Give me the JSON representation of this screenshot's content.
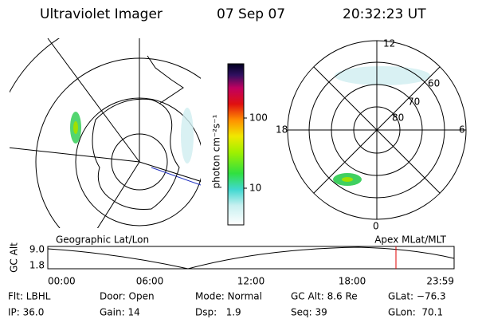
{
  "header": {
    "instrument": "Ultraviolet Imager",
    "date": "07 Sep 07",
    "time": "20:32:23 UT"
  },
  "colorbar": {
    "label": "photon cm⁻²s⁻¹",
    "ticks": [
      "100",
      "10"
    ]
  },
  "polar_plot": {
    "mlt_labels": [
      "12",
      "18",
      "6",
      "0"
    ],
    "lat_labels": [
      "60",
      "70",
      "80"
    ]
  },
  "panel_labels": {
    "left": "Geographic Lat/Lon",
    "right": "Apex MLat/MLT"
  },
  "altitude_plot": {
    "axis_label": "GC Alt",
    "y_labels": [
      "9.0",
      "1.8"
    ],
    "x_labels": [
      "00:00",
      "06:00",
      "12:00",
      "18:00",
      "23:59"
    ]
  },
  "info": [
    [
      "Flt: LBHL",
      "Door: Open",
      "Mode: Normal",
      "GC Alt: 8.6 Re",
      "GLat: −76.3"
    ],
    [
      "IP: 36.0",
      "Gain: 14",
      "Dsp:   1.9",
      "Seq: 39",
      "GLon:  70.1"
    ]
  ]
}
